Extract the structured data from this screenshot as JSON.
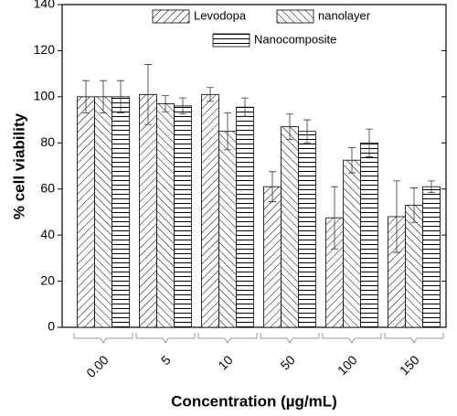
{
  "chart_data": {
    "type": "bar",
    "x_label": "Concentration (µg/mL)",
    "y_label": "% cell viability",
    "categories": [
      "0.00",
      "5",
      "10",
      "50",
      "100",
      "150"
    ],
    "series": [
      {
        "name": "Levodopa",
        "color": "#000000",
        "hatch": "diagonal",
        "values": [
          100,
          101,
          101,
          61,
          47.5,
          48
        ],
        "errors": [
          7,
          13,
          3,
          6.5,
          13.5,
          15.5
        ]
      },
      {
        "name": "nanolayer",
        "color": "#000000",
        "hatch": "back-diagonal",
        "values": [
          100,
          97,
          85,
          87,
          72.5,
          53
        ],
        "errors": [
          7,
          3.5,
          8,
          5.5,
          5.5,
          7.5
        ]
      },
      {
        "name": "Nanocomposite",
        "color": "#000000",
        "hatch": "horizontal",
        "values": [
          100,
          96,
          95.5,
          85,
          80,
          61
        ],
        "errors": [
          7,
          3.5,
          4,
          5,
          6,
          2.5
        ]
      }
    ],
    "ylim": [
      0,
      140
    ],
    "yticks": [
      0,
      20,
      40,
      60,
      80,
      100,
      120,
      140
    ]
  }
}
